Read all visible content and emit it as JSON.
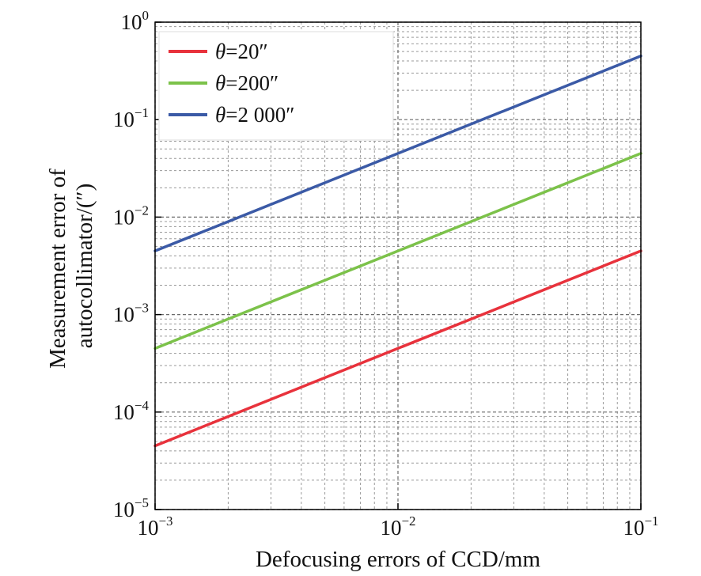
{
  "chart_data": {
    "type": "line",
    "xlabel": "Defocusing errors of CCD/mm",
    "ylabel_lines": [
      "Measurement error of",
      "autocollimator/(″)"
    ],
    "x_scale": "log",
    "y_scale": "log",
    "xlim": [
      0.001,
      0.1
    ],
    "ylim": [
      1e-05,
      1
    ],
    "x_ticks": [
      {
        "value": 0.001,
        "base": "10",
        "exp": "−3"
      },
      {
        "value": 0.01,
        "base": "10",
        "exp": "−2"
      },
      {
        "value": 0.1,
        "base": "10",
        "exp": "−1"
      }
    ],
    "y_ticks": [
      {
        "value": 1e-05,
        "base": "10",
        "exp": "−5"
      },
      {
        "value": 0.0001,
        "base": "10",
        "exp": "−4"
      },
      {
        "value": 0.001,
        "base": "10",
        "exp": "−3"
      },
      {
        "value": 0.01,
        "base": "10",
        "exp": "−2"
      },
      {
        "value": 0.1,
        "base": "10",
        "exp": "−1"
      },
      {
        "value": 1,
        "base": "10",
        "exp": "0"
      }
    ],
    "grid": true,
    "legend_position": "top-left",
    "series": [
      {
        "name_symbol": "θ",
        "name_value": "=20″",
        "color": "#e8323c",
        "x": [
          0.001,
          0.1
        ],
        "y": [
          4.5e-05,
          0.0045
        ]
      },
      {
        "name_symbol": "θ",
        "name_value": "=200″",
        "color": "#7cc24a",
        "x": [
          0.001,
          0.1
        ],
        "y": [
          0.00045,
          0.045
        ]
      },
      {
        "name_symbol": "θ",
        "name_value": "=2 000″",
        "color": "#3b5aa6",
        "x": [
          0.001,
          0.1
        ],
        "y": [
          0.0045,
          0.45
        ]
      }
    ]
  }
}
